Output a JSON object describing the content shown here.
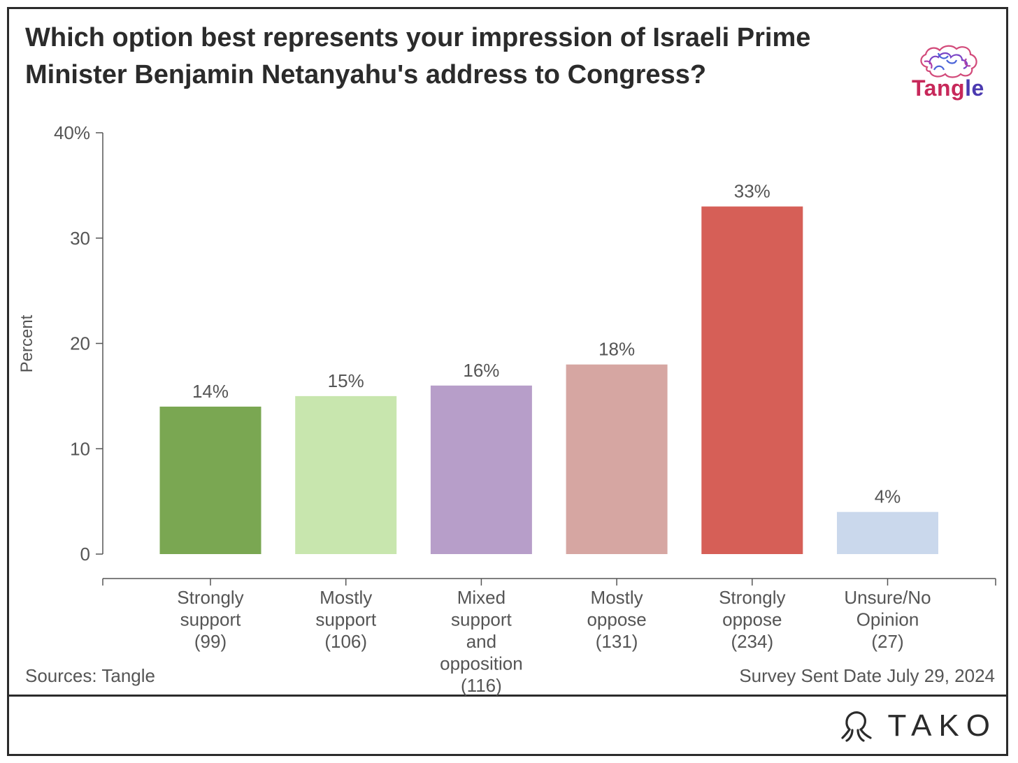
{
  "title": "Which option best represents your impression of Israeli Prime Minister Benjamin Netanyahu's address to Congress?",
  "brand": {
    "name_part1": "Tang",
    "name_part2": "le",
    "logo_icon": "brain-icon"
  },
  "footer": {
    "source": "Sources: Tangle",
    "survey_date": "Survey Sent Date July 29, 2024",
    "tako": "TAKO",
    "tako_icon": "tako-octopus-icon"
  },
  "chart_data": {
    "type": "bar",
    "ylabel": "Percent",
    "xlabel": "",
    "ylim": [
      0,
      40
    ],
    "yticks": [
      {
        "value": 0,
        "label": "0"
      },
      {
        "value": 10,
        "label": "10"
      },
      {
        "value": 20,
        "label": "20"
      },
      {
        "value": 30,
        "label": "30"
      },
      {
        "value": 40,
        "label": "40%"
      }
    ],
    "categories": [
      [
        "Strongly",
        "support",
        "(99)"
      ],
      [
        "Mostly",
        "support",
        "(106)"
      ],
      [
        "Mixed",
        "support",
        "and",
        "opposition",
        "(116)"
      ],
      [
        "Mostly",
        "oppose",
        "(131)"
      ],
      [
        "Strongly",
        "oppose",
        "(234)"
      ],
      [
        "Unsure/No",
        "Opinion",
        "(27)"
      ]
    ],
    "values": [
      14,
      15,
      16,
      18,
      33,
      4
    ],
    "value_labels": [
      "14%",
      "15%",
      "16%",
      "18%",
      "33%",
      "4%"
    ],
    "colors": [
      "#7aa752",
      "#c8e6ae",
      "#b79ec9",
      "#d6a6a2",
      "#d65f57",
      "#cad8ec"
    ],
    "grid": false,
    "legend": "none"
  }
}
